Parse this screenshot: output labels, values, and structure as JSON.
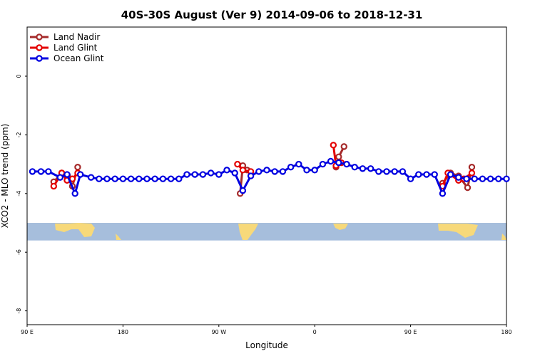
{
  "chart_data": {
    "type": "line",
    "title": "40S-30S August (Ver 9)   2014-09-06 to 2018-12-31",
    "xlabel": "Longitude",
    "ylabel": "XCO2 - MLO trend (ppm)",
    "xlim": [
      90,
      450
    ],
    "ylim": [
      -8.3,
      1.5
    ],
    "x_ticks": [
      {
        "value": 90,
        "label": "90 E"
      },
      {
        "value": 180,
        "label": "180"
      },
      {
        "value": 270,
        "label": "90 W"
      },
      {
        "value": 360,
        "label": "0"
      },
      {
        "value": 450,
        "label": "90 E"
      },
      {
        "value": 540,
        "label": "180"
      }
    ],
    "y_ticks": [
      {
        "value": 0,
        "label": "0"
      },
      {
        "value": -2,
        "label": "-2"
      },
      {
        "value": -4,
        "label": "-4"
      },
      {
        "value": -6,
        "label": "-6"
      },
      {
        "value": -8,
        "label": "-8"
      }
    ],
    "map_band": {
      "y_top": -5.0,
      "y_bottom": -5.6,
      "ocean_color": "#a6bedc",
      "land_color": "#f7d97a"
    },
    "legend_position": "top-left",
    "series": [
      {
        "name": "Land Nadir",
        "color": "#a52a2a",
        "segments": [
          {
            "x": [
              115,
              122.5,
              128,
              132.5,
              137.5
            ],
            "y": [
              -3.6,
              -3.3,
              -3.4,
              -3.75,
              -3.1
            ]
          },
          {
            "x": [
              290,
              292.5,
              296.5
            ],
            "y": [
              -4.0,
              -3.05,
              -3.2
            ]
          },
          {
            "x": [
              380,
              382.5,
              387.5
            ],
            "y": [
              -3.1,
              -2.75,
              -2.4
            ]
          },
          {
            "x": [
              480,
              487.5,
              495,
              503.5,
              507.5
            ],
            "y": [
              -3.65,
              -3.3,
              -3.4,
              -3.8,
              -3.1
            ]
          }
        ]
      },
      {
        "name": "Land Glint",
        "color": "#e40000",
        "segments": [
          {
            "x": [
              115,
              122.5,
              127.5,
              132.5,
              137.5
            ],
            "y": [
              -3.75,
              -3.3,
              -3.55,
              -3.5,
              -3.3
            ]
          },
          {
            "x": [
              287.5,
              292.5,
              300
            ],
            "y": [
              -3.0,
              -3.2,
              -3.25
            ]
          },
          {
            "x": [
              377.5,
              380,
              385
            ],
            "y": [
              -2.35,
              -3.05,
              -2.95
            ]
          },
          {
            "x": [
              480,
              485,
              495,
              500,
              507.5
            ],
            "y": [
              -3.75,
              -3.3,
              -3.55,
              -3.5,
              -3.3
            ]
          }
        ]
      },
      {
        "name": "Ocean Glint",
        "color": "#0000e0",
        "segments": [
          {
            "x": [
              95,
              103,
              110,
              121,
              127.5,
              135,
              140,
              150,
              157.5,
              165,
              172.5,
              180,
              187.5,
              195,
              202.5,
              210,
              217.5,
              225,
              232.5,
              240,
              247.5,
              255,
              262.5,
              270,
              277.5,
              285,
              292.5,
              300,
              307.5,
              315,
              322.5,
              330,
              337.5,
              345,
              352.5,
              360,
              367.5,
              375,
              382.5,
              390,
              397.5,
              405,
              412.5,
              420,
              427.5,
              435,
              442.5,
              450,
              457.5,
              465,
              472.5,
              480,
              487.5,
              495,
              502.5,
              510,
              517.5,
              525,
              532.5,
              540
            ],
            "y": [
              -3.25,
              -3.25,
              -3.25,
              -3.45,
              -3.35,
              -4.0,
              -3.35,
              -3.45,
              -3.5,
              -3.5,
              -3.5,
              -3.5,
              -3.5,
              -3.5,
              -3.5,
              -3.5,
              -3.5,
              -3.5,
              -3.5,
              -3.35,
              -3.35,
              -3.35,
              -3.3,
              -3.35,
              -3.2,
              -3.3,
              -3.9,
              -3.4,
              -3.25,
              -3.2,
              -3.25,
              -3.25,
              -3.1,
              -3.0,
              -3.2,
              -3.2,
              -3.0,
              -2.9,
              -2.95,
              -3.0,
              -3.1,
              -3.15,
              -3.15,
              -3.25,
              -3.25,
              -3.25,
              -3.25,
              -3.5,
              -3.35,
              -3.35,
              -3.35,
              -4.0,
              -3.35,
              -3.45,
              -3.5,
              -3.5,
              -3.5,
              -3.5,
              -3.5,
              -3.5
            ]
          }
        ]
      }
    ]
  }
}
